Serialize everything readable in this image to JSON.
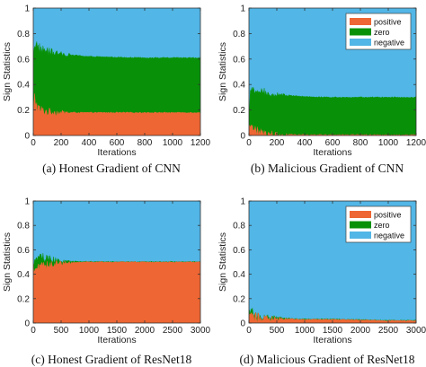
{
  "colors": {
    "positive": "#ee6633",
    "zero": "#089108",
    "negative": "#52b6e6"
  },
  "chart_data": [
    {
      "type": "area",
      "stacked": true,
      "caption": "(a) Honest Gradient of CNN",
      "xlabel": "Iterations",
      "ylabel": "Sign Statistics",
      "xlim": [
        0,
        1200
      ],
      "ylim": [
        0,
        1
      ],
      "xticks": [
        "0",
        "200",
        "400",
        "600",
        "800",
        "1000",
        "1200"
      ],
      "yticks": [
        "0",
        "0.2",
        "0.4",
        "0.6",
        "0.8",
        "1"
      ],
      "legend": null,
      "x": [
        0,
        10,
        20,
        30,
        50,
        80,
        120,
        200,
        300,
        400,
        600,
        800,
        1000,
        1200
      ],
      "series": [
        {
          "key": "positive",
          "name": "positive",
          "values": [
            0.16,
            0.3,
            0.26,
            0.22,
            0.2,
            0.19,
            0.185,
            0.18,
            0.18,
            0.18,
            0.18,
            0.18,
            0.18,
            0.18
          ]
        },
        {
          "key": "zero",
          "name": "zero",
          "values": [
            0.5,
            0.42,
            0.46,
            0.48,
            0.48,
            0.48,
            0.47,
            0.46,
            0.45,
            0.44,
            0.435,
            0.43,
            0.43,
            0.43
          ]
        },
        {
          "key": "negative",
          "name": "negative",
          "values": [
            0.34,
            0.28,
            0.28,
            0.3,
            0.32,
            0.33,
            0.345,
            0.36,
            0.37,
            0.38,
            0.385,
            0.39,
            0.39,
            0.39
          ]
        }
      ]
    },
    {
      "type": "area",
      "stacked": true,
      "caption": "(b) Malicious Gradient of CNN",
      "xlabel": "Iterations",
      "ylabel": "Sign Statistics",
      "xlim": [
        0,
        1200
      ],
      "ylim": [
        0,
        1
      ],
      "xticks": [
        "0",
        "200",
        "400",
        "600",
        "800",
        "1000",
        "1200"
      ],
      "yticks": [
        "0",
        "0.2",
        "0.4",
        "0.6",
        "0.8",
        "1"
      ],
      "legend": "top-right",
      "x": [
        0,
        10,
        20,
        30,
        50,
        80,
        120,
        200,
        300,
        400,
        600,
        800,
        1000,
        1200
      ],
      "series": [
        {
          "key": "positive",
          "name": "positive",
          "values": [
            0.06,
            0.1,
            0.08,
            0.06,
            0.04,
            0.02,
            0.015,
            0.01,
            0.008,
            0.006,
            0.005,
            0.005,
            0.005,
            0.005
          ]
        },
        {
          "key": "zero",
          "name": "zero",
          "values": [
            0.16,
            0.22,
            0.26,
            0.3,
            0.32,
            0.33,
            0.32,
            0.31,
            0.305,
            0.3,
            0.295,
            0.295,
            0.295,
            0.295
          ]
        },
        {
          "key": "negative",
          "name": "negative",
          "values": [
            0.78,
            0.68,
            0.66,
            0.64,
            0.64,
            0.65,
            0.665,
            0.68,
            0.687,
            0.694,
            0.7,
            0.7,
            0.7,
            0.7
          ]
        }
      ]
    },
    {
      "type": "area",
      "stacked": true,
      "caption": "(c) Honest Gradient of ResNet18",
      "xlabel": "Iterations",
      "ylabel": "Sign Statistics",
      "xlim": [
        0,
        3000
      ],
      "ylim": [
        0,
        1
      ],
      "xticks": [
        "0",
        "500",
        "1000",
        "1500",
        "2000",
        "2500",
        "3000"
      ],
      "yticks": [
        "0",
        "0.2",
        "0.4",
        "0.6",
        "0.8",
        "1"
      ],
      "legend": null,
      "x": [
        0,
        30,
        60,
        100,
        150,
        250,
        400,
        600,
        1000,
        1500,
        2000,
        2500,
        3000
      ],
      "series": [
        {
          "key": "positive",
          "name": "positive",
          "values": [
            0.46,
            0.43,
            0.44,
            0.45,
            0.46,
            0.475,
            0.49,
            0.495,
            0.5,
            0.5,
            0.5,
            0.5,
            0.5
          ]
        },
        {
          "key": "zero",
          "name": "zero",
          "values": [
            0.05,
            0.1,
            0.12,
            0.1,
            0.08,
            0.05,
            0.025,
            0.01,
            0.004,
            0.002,
            0.002,
            0.002,
            0.002
          ]
        },
        {
          "key": "negative",
          "name": "negative",
          "values": [
            0.49,
            0.47,
            0.44,
            0.45,
            0.46,
            0.475,
            0.485,
            0.495,
            0.496,
            0.498,
            0.498,
            0.498,
            0.498
          ]
        }
      ]
    },
    {
      "type": "area",
      "stacked": true,
      "caption": "(d) Malicious Gradient of ResNet18",
      "xlabel": "Iterations",
      "ylabel": "Sign Statistics",
      "xlim": [
        0,
        3000
      ],
      "ylim": [
        0,
        1
      ],
      "xticks": [
        "0",
        "500",
        "1000",
        "1500",
        "2000",
        "2500",
        "3000"
      ],
      "yticks": [
        "0",
        "0.2",
        "0.4",
        "0.6",
        "0.8",
        "1"
      ],
      "legend": "top-right",
      "x": [
        0,
        30,
        60,
        100,
        200,
        500,
        1000,
        1500,
        2000,
        2500,
        3000
      ],
      "series": [
        {
          "key": "positive",
          "name": "positive",
          "values": [
            0.02,
            0.05,
            0.06,
            0.05,
            0.04,
            0.035,
            0.03,
            0.03,
            0.025,
            0.02,
            0.02
          ]
        },
        {
          "key": "zero",
          "name": "zero",
          "values": [
            0.03,
            0.04,
            0.02,
            0.01,
            0.005,
            0.003,
            0.002,
            0.002,
            0.002,
            0.002,
            0.002
          ]
        },
        {
          "key": "negative",
          "name": "negative",
          "values": [
            0.95,
            0.91,
            0.92,
            0.94,
            0.955,
            0.962,
            0.968,
            0.968,
            0.973,
            0.978,
            0.978
          ]
        }
      ]
    }
  ]
}
